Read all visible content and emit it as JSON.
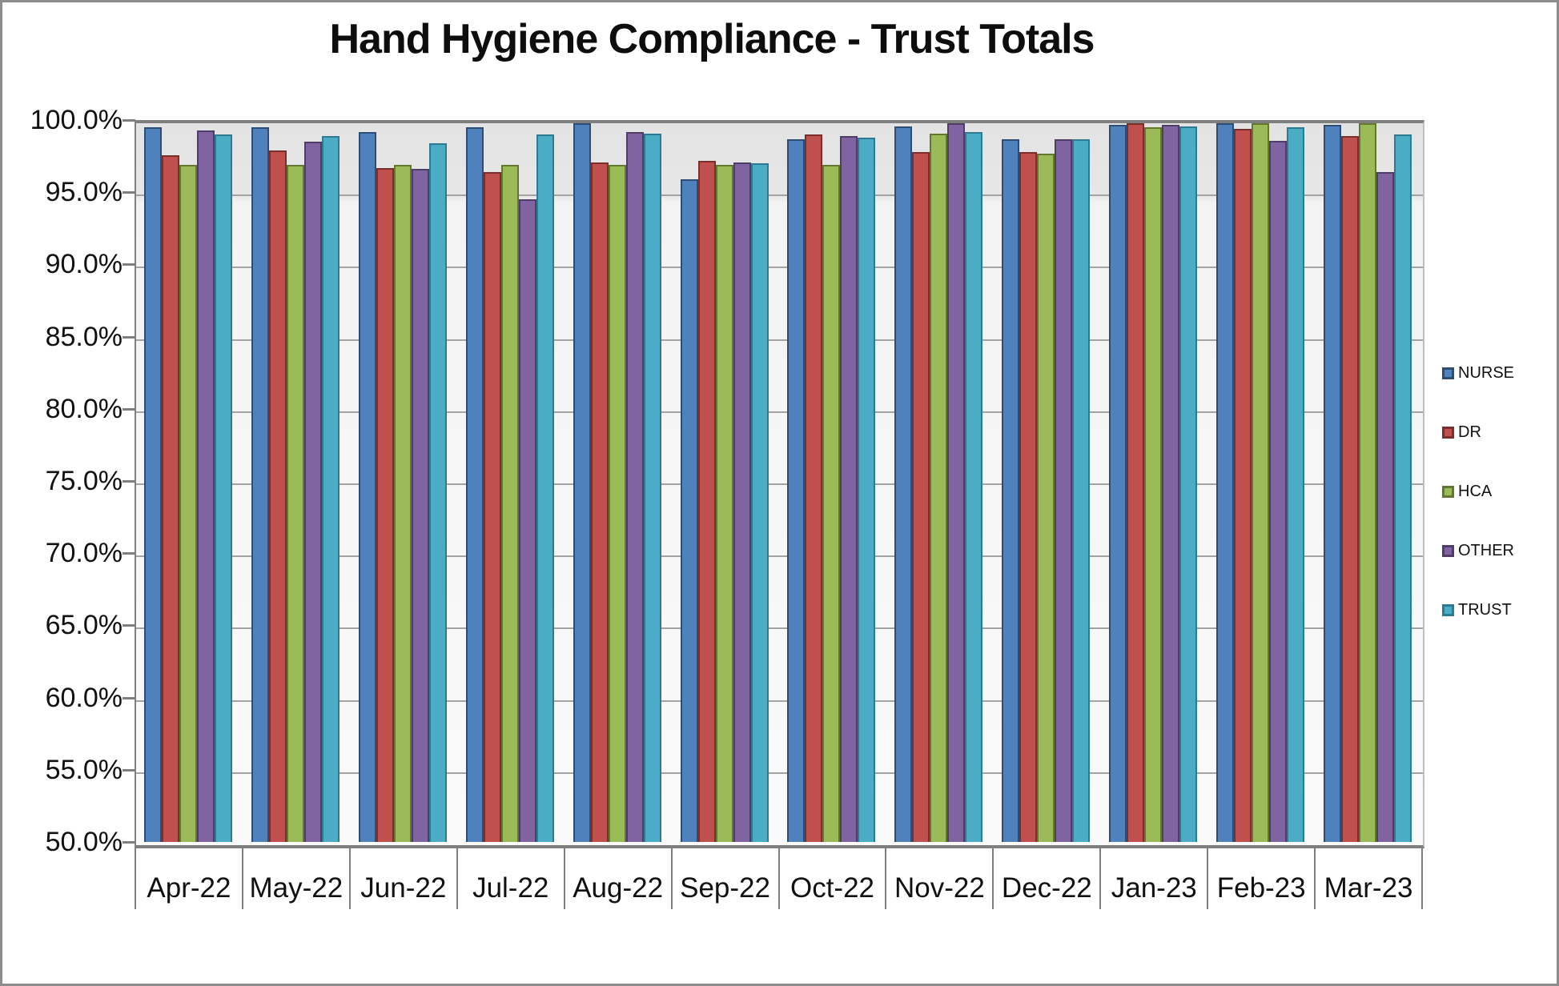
{
  "chart_data": {
    "type": "bar",
    "title": "Hand Hygiene Compliance - Trust Totals",
    "categories": [
      "Apr-22",
      "May-22",
      "Jun-22",
      "Jul-22",
      "Aug-22",
      "Sep-22",
      "Oct-22",
      "Nov-22",
      "Dec-22",
      "Jan-23",
      "Feb-23",
      "Mar-23"
    ],
    "series": [
      {
        "name": "NURSE",
        "color": "#4F81BD",
        "border_color": "#2E4D75",
        "values": [
          99.7,
          99.7,
          99.4,
          99.7,
          100.0,
          96.1,
          98.9,
          99.8,
          98.9,
          99.9,
          100.0,
          99.9
        ]
      },
      {
        "name": "DR",
        "color": "#C0504D",
        "border_color": "#7B2E2C",
        "values": [
          97.8,
          98.1,
          96.9,
          96.6,
          97.3,
          97.4,
          99.2,
          98.0,
          98.0,
          100.0,
          99.6,
          99.1
        ]
      },
      {
        "name": "HCA",
        "color": "#9BBB59",
        "border_color": "#63772F",
        "values": [
          97.1,
          97.1,
          97.1,
          97.1,
          97.1,
          97.1,
          97.1,
          99.3,
          97.9,
          99.7,
          100.0,
          100.0
        ]
      },
      {
        "name": "OTHER",
        "color": "#8064A2",
        "border_color": "#4E3D66",
        "values": [
          99.5,
          98.7,
          96.8,
          94.7,
          99.4,
          97.3,
          99.1,
          100.0,
          98.9,
          99.9,
          98.8,
          96.6
        ]
      },
      {
        "name": "TRUST",
        "color": "#4BACC6",
        "border_color": "#2D7A91",
        "values": [
          99.2,
          99.1,
          98.6,
          99.2,
          99.3,
          97.2,
          99.0,
          99.4,
          98.9,
          99.8,
          99.7,
          99.2
        ]
      }
    ],
    "ylim": [
      50,
      100
    ],
    "ytick_step": 5,
    "ytick_labels": [
      "100.0%",
      "95.0%",
      "90.0%",
      "85.0%",
      "80.0%",
      "75.0%",
      "70.0%",
      "65.0%",
      "60.0%",
      "55.0%",
      "50.0%"
    ],
    "grid": true,
    "legend_position": "right",
    "colors": {
      "gridline": "#a3a3a3",
      "axis": "#7f7f7f",
      "plot_bg_top": "#e3e3e3",
      "plot_bg_bottom": "#fafafa",
      "title_text": "#0d0d0d"
    }
  }
}
